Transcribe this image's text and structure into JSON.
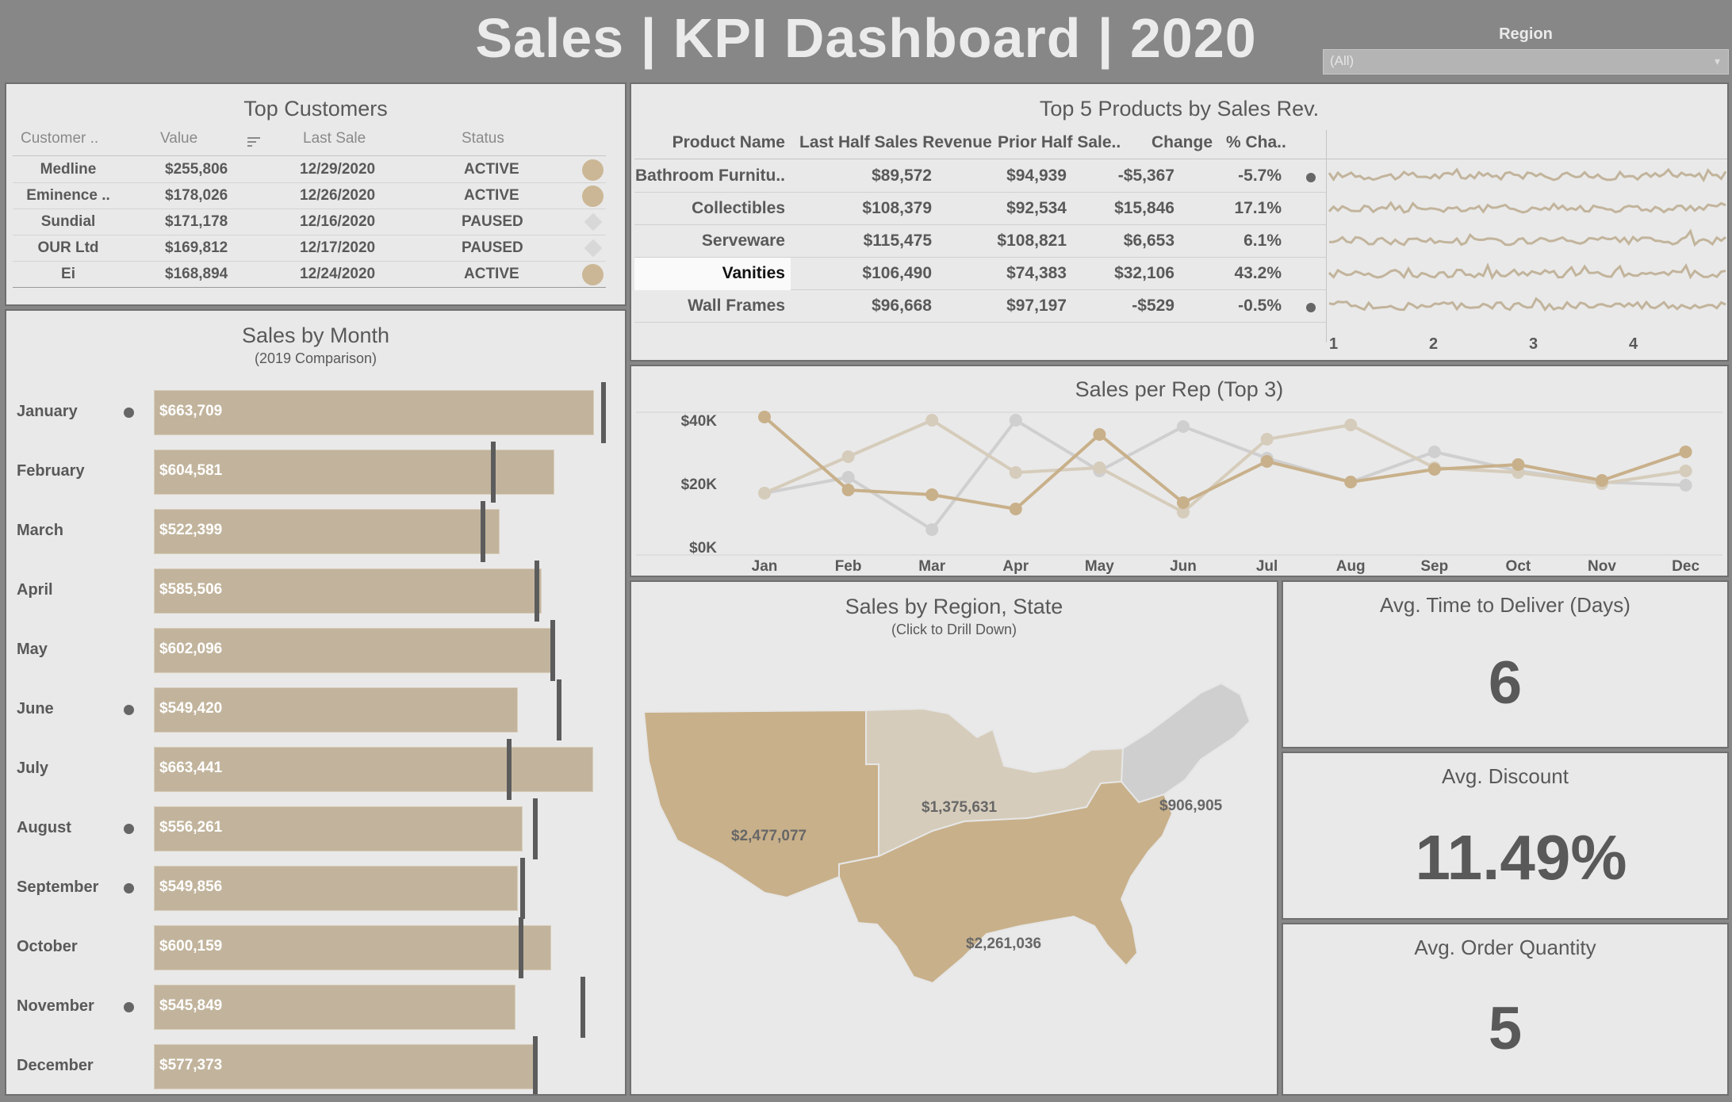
{
  "header": {
    "title": "Sales  |  KPI Dashboard  |  2020",
    "region_label": "Region",
    "region_value": "(All)"
  },
  "colors": {
    "tan": "#c2b49c",
    "tan_dark": "#c8b08a",
    "light_tan": "#d6ccbb",
    "gray_line": "#cfcfcf",
    "dark_gray": "#595959"
  },
  "customers": {
    "title": "Top Customers",
    "headers": [
      "Customer ..",
      "Value",
      "Last Sale",
      "Status"
    ],
    "rows": [
      {
        "name": "Medline",
        "value": "$255,806",
        "last_sale": "12/29/2020",
        "status": "ACTIVE"
      },
      {
        "name": "Eminence ..",
        "value": "$178,026",
        "last_sale": "12/26/2020",
        "status": "ACTIVE"
      },
      {
        "name": "Sundial",
        "value": "$171,178",
        "last_sale": "12/16/2020",
        "status": "PAUSED"
      },
      {
        "name": "OUR Ltd",
        "value": "$169,812",
        "last_sale": "12/17/2020",
        "status": "PAUSED"
      },
      {
        "name": "Ei",
        "value": "$168,894",
        "last_sale": "12/24/2020",
        "status": "ACTIVE"
      }
    ]
  },
  "products": {
    "title": "Top 5 Products by Sales Rev.",
    "headers": [
      "Product Name",
      "Last Half Sales Revenue",
      "Prior Half Sale..",
      "Change",
      "% Cha.."
    ],
    "rows": [
      {
        "name": "Bathroom Furnitu..",
        "last_half": "$89,572",
        "prior_half": "$94,939",
        "change": "-$5,367",
        "pct": "-5.7%",
        "dot": true
      },
      {
        "name": "Collectibles",
        "last_half": "$108,379",
        "prior_half": "$92,534",
        "change": "$15,846",
        "pct": "17.1%",
        "dot": false
      },
      {
        "name": "Serveware",
        "last_half": "$115,475",
        "prior_half": "$108,821",
        "change": "$6,653",
        "pct": "6.1%",
        "dot": false
      },
      {
        "name": "Vanities",
        "last_half": "$106,490",
        "prior_half": "$74,383",
        "change": "$32,106",
        "pct": "43.2%",
        "dot": false
      },
      {
        "name": "Wall Frames",
        "last_half": "$96,668",
        "prior_half": "$97,197",
        "change": "-$529",
        "pct": "-0.5%",
        "dot": true
      }
    ],
    "spark_axis": [
      "1",
      "2",
      "3",
      "4"
    ]
  },
  "region": {
    "title": "Sales by Region, State",
    "subtitle": "(Click to Drill Down)",
    "regions": [
      {
        "name": "West",
        "value": "$2,477,077"
      },
      {
        "name": "Central",
        "value": "$1,375,631"
      },
      {
        "name": "East",
        "value": "$906,905"
      },
      {
        "name": "South",
        "value": "$2,261,036"
      }
    ]
  },
  "kpis": [
    {
      "title": "Avg. Time to Deliver (Days)",
      "value": "6"
    },
    {
      "title": "Avg. Discount",
      "value": "11.49%"
    },
    {
      "title": "Avg. Order Quantity",
      "value": "5"
    }
  ],
  "chart_data": [
    {
      "type": "bar",
      "title": "Sales by Month",
      "subtitle": "(2019 Comparison)",
      "categories": [
        "January",
        "February",
        "March",
        "April",
        "May",
        "June",
        "July",
        "August",
        "September",
        "October",
        "November",
        "December"
      ],
      "values": [
        663709,
        604581,
        522399,
        585506,
        602096,
        549420,
        663441,
        556261,
        549856,
        600159,
        545849,
        577373
      ],
      "value_labels": [
        "$663,709",
        "$604,581",
        "$522,399",
        "$585,506",
        "$602,096",
        "$549,420",
        "$663,441",
        "$556,261",
        "$549,856",
        "$600,159",
        "$545,849",
        "$577,373"
      ],
      "reference_2019": [
        678000,
        512000,
        497000,
        578000,
        602000,
        612000,
        536000,
        576000,
        556000,
        554000,
        648000,
        576000
      ],
      "below_reference": [
        true,
        false,
        false,
        false,
        false,
        true,
        false,
        true,
        true,
        false,
        true,
        false
      ],
      "xlim": [
        0,
        675000
      ]
    },
    {
      "type": "line",
      "title": "Sales per Rep (Top 3)",
      "categories": [
        "Jan",
        "Feb",
        "Mar",
        "Apr",
        "May",
        "Jun",
        "Jul",
        "Aug",
        "Sep",
        "Oct",
        "Nov",
        "Dec"
      ],
      "yticks": [
        "$40K",
        "$20K",
        "$0K"
      ],
      "ytick_values": [
        40000,
        20000,
        0
      ],
      "ylim": [
        0,
        47000
      ],
      "series": [
        {
          "values": [
            41000,
            18000,
            16500,
            12000,
            35500,
            14000,
            27000,
            20500,
            24500,
            26000,
            21000,
            30000
          ],
          "color": "#c8b08a"
        },
        {
          "values": [
            17000,
            28500,
            40000,
            23500,
            25000,
            11000,
            34000,
            38500,
            25000,
            23500,
            20000,
            24000
          ],
          "color": "#d6ccbb"
        },
        {
          "values": [
            17000,
            22000,
            5500,
            40000,
            24000,
            38000,
            28000,
            20500,
            30000,
            24000,
            20500,
            19500
          ],
          "color": "#cfcfcf"
        }
      ]
    }
  ]
}
